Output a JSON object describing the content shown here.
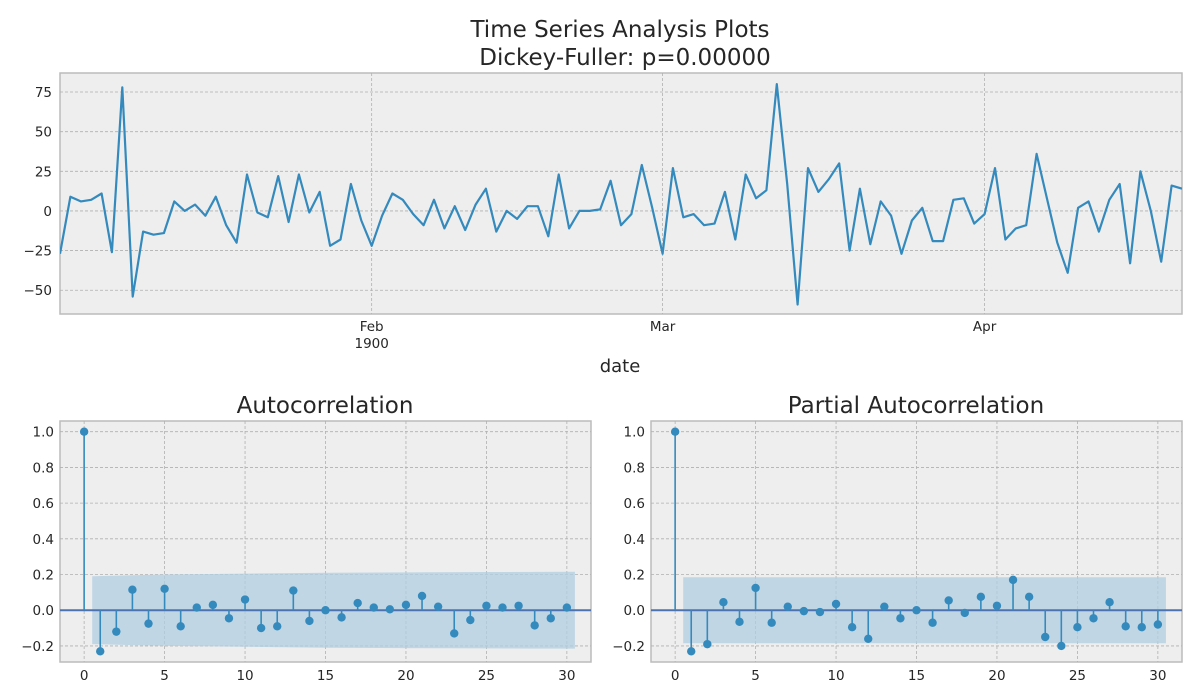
{
  "chart_data": [
    {
      "type": "line",
      "title": "Time Series Analysis Plots",
      "subtitle": "Dickey-Fuller: p=0.00000",
      "xlabel": "date",
      "ylabel": "",
      "ylim": [
        -65,
        87
      ],
      "yticks": [
        -50,
        -25,
        0,
        25,
        50,
        75
      ],
      "grid": true,
      "color": "#348abd",
      "x_start": "1900-01-02",
      "x_ticks": [
        {
          "date": "1900-02-01",
          "label": "Feb",
          "sublabel": "1900"
        },
        {
          "date": "1900-03-01",
          "label": "Mar",
          "sublabel": ""
        },
        {
          "date": "1900-04-01",
          "label": "Apr",
          "sublabel": ""
        }
      ],
      "values": [
        -27,
        9,
        6,
        7,
        11,
        -26,
        78,
        -54,
        -13,
        -15,
        -14,
        6,
        0,
        4,
        -3,
        9,
        -9,
        -20,
        23,
        -1,
        -4,
        22,
        -7,
        23,
        -1,
        12,
        -22,
        -18,
        17,
        -6,
        -22,
        -3,
        11,
        7,
        -2,
        -9,
        7,
        -11,
        3,
        -12,
        4,
        14,
        -13,
        0,
        -5,
        3,
        3,
        -16,
        23,
        -11,
        0,
        0,
        1,
        19,
        -9,
        -2,
        29,
        2,
        -27,
        27,
        -4,
        -2,
        -9,
        -8,
        12,
        -18,
        23,
        8,
        13,
        80,
        17,
        -59,
        27,
        12,
        20,
        30,
        -25,
        14,
        -21,
        6,
        -3,
        -27,
        -6,
        2,
        -19,
        -19,
        7,
        8,
        -8,
        -2,
        27,
        -18,
        -11,
        -9,
        36,
        8,
        -20,
        -39,
        2,
        6,
        -13,
        7,
        17,
        -33,
        25,
        0,
        -32,
        16,
        14
      ]
    },
    {
      "type": "stem",
      "title": "Autocorrelation",
      "xlim": [
        -1.5,
        31.5
      ],
      "ylim": [
        -0.29,
        1.06
      ],
      "xticks": [
        0,
        5,
        10,
        15,
        20,
        25,
        30
      ],
      "yticks": [
        -0.2,
        0.0,
        0.2,
        0.4,
        0.6,
        0.8,
        1.0
      ],
      "grid": true,
      "color": "#348abd",
      "zero_line_color": "#4c72b0",
      "band_color": "#b0cde0",
      "lags": [
        0,
        1,
        2,
        3,
        4,
        5,
        6,
        7,
        8,
        9,
        10,
        11,
        12,
        13,
        14,
        15,
        16,
        17,
        18,
        19,
        20,
        21,
        22,
        23,
        24,
        25,
        26,
        27,
        28,
        29,
        30
      ],
      "values": [
        1.0,
        -0.23,
        -0.12,
        0.115,
        -0.075,
        0.12,
        -0.09,
        0.015,
        0.03,
        -0.045,
        0.06,
        -0.1,
        -0.09,
        0.11,
        -0.06,
        0.0,
        -0.04,
        0.04,
        0.015,
        0.005,
        0.03,
        0.08,
        0.02,
        -0.13,
        -0.055,
        0.025,
        0.015,
        0.025,
        -0.085,
        -0.045,
        0.015
      ],
      "conf_lags": [
        0.5,
        5,
        10,
        15,
        20,
        25,
        30.5
      ],
      "conf_upper": [
        0.19,
        0.2,
        0.205,
        0.21,
        0.212,
        0.214,
        0.215
      ],
      "conf_lower": [
        -0.19,
        -0.2,
        -0.205,
        -0.21,
        -0.212,
        -0.214,
        -0.215
      ]
    },
    {
      "type": "stem",
      "title": "Partial Autocorrelation",
      "xlim": [
        -1.5,
        31.5
      ],
      "ylim": [
        -0.29,
        1.06
      ],
      "xticks": [
        0,
        5,
        10,
        15,
        20,
        25,
        30
      ],
      "yticks": [
        -0.2,
        0.0,
        0.2,
        0.4,
        0.6,
        0.8,
        1.0
      ],
      "grid": true,
      "color": "#348abd",
      "zero_line_color": "#4c72b0",
      "band_color": "#b0cde0",
      "lags": [
        0,
        1,
        2,
        3,
        4,
        5,
        6,
        7,
        8,
        9,
        10,
        11,
        12,
        13,
        14,
        15,
        16,
        17,
        18,
        19,
        20,
        21,
        22,
        23,
        24,
        25,
        26,
        27,
        28,
        29,
        30
      ],
      "values": [
        1.0,
        -0.23,
        -0.19,
        0.045,
        -0.065,
        0.125,
        -0.07,
        0.02,
        -0.005,
        -0.01,
        0.035,
        -0.095,
        -0.16,
        0.02,
        -0.045,
        0.0,
        -0.07,
        0.055,
        -0.015,
        0.075,
        0.025,
        0.17,
        0.075,
        -0.15,
        -0.2,
        -0.095,
        -0.045,
        0.045,
        -0.09,
        -0.095,
        -0.08
      ],
      "conf_lags": [
        0.5,
        30.5
      ],
      "conf_upper": [
        0.185,
        0.185
      ],
      "conf_lower": [
        -0.185,
        -0.185
      ]
    }
  ]
}
